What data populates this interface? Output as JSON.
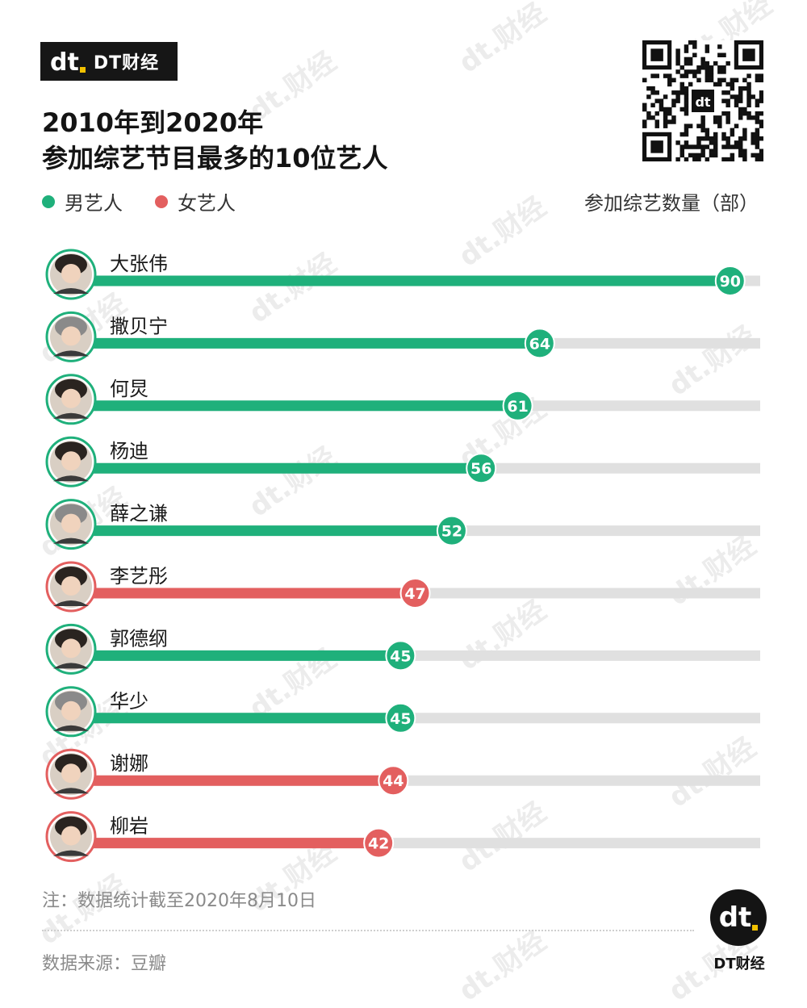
{
  "brand": {
    "logo_text": "DT财经",
    "footer_text": "DT财经"
  },
  "title": {
    "line1": "2010年到2020年",
    "line2": "参加综艺节目最多的10位艺人"
  },
  "legend": [
    {
      "label": "男艺人",
      "color": "#1fb07b"
    },
    {
      "label": "女艺人",
      "color": "#e35f5f"
    }
  ],
  "unit_label": "参加综艺数量（部）",
  "colors": {
    "male": "#1fb07b",
    "female": "#e35f5f",
    "track": "#e0e0e0"
  },
  "chart_data": {
    "type": "bar",
    "orientation": "horizontal",
    "title": "2010年到2020年 参加综艺节目最多的10位艺人",
    "ylabel": "参加综艺数量（部）",
    "xlim": [
      0,
      100
    ],
    "categories": [
      "大张伟",
      "撒贝宁",
      "何炅",
      "杨迪",
      "薛之谦",
      "李艺彤",
      "郭德纲",
      "华少",
      "谢娜",
      "柳岩"
    ],
    "values": [
      90,
      64,
      61,
      56,
      52,
      47,
      45,
      45,
      44,
      42
    ],
    "groups": [
      "男艺人",
      "男艺人",
      "男艺人",
      "男艺人",
      "男艺人",
      "女艺人",
      "男艺人",
      "男艺人",
      "女艺人",
      "女艺人"
    ],
    "legend_position": "top-left"
  },
  "note": "注：数据统计截至2020年8月10日",
  "source": "数据来源：豆瓣",
  "watermark_text": "财经"
}
